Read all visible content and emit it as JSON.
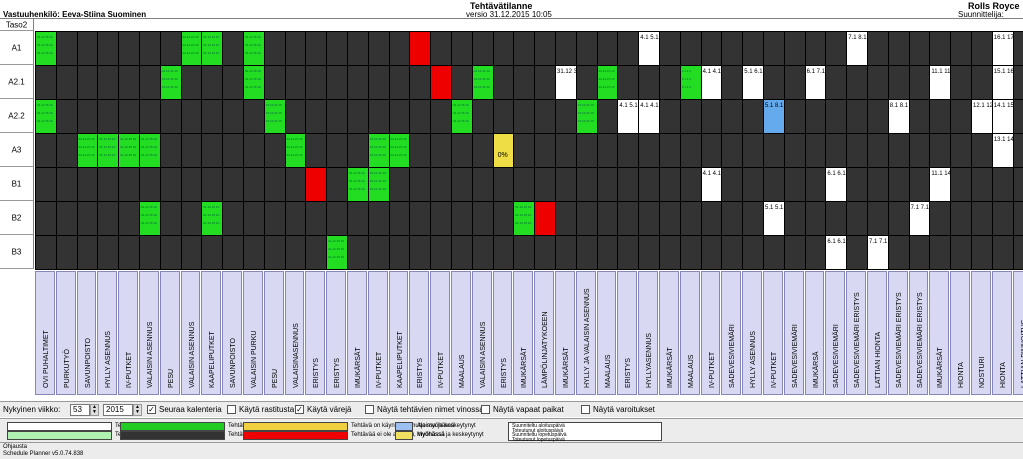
{
  "header": {
    "responsible": "Vastuuhenkilö: Eeva-Stiina Suominen",
    "title": "Tehtävätilanne",
    "version": "versio 31.12.2015 10:05",
    "company": "Rolls Royce",
    "planner": "Suunnittelija:",
    "corner": "Taso2"
  },
  "rows": [
    "A1",
    "A2.1",
    "A2.2",
    "A3",
    "B1",
    "B2",
    "B3"
  ],
  "columns": [
    "OVI PUHALTIMET",
    "PURKUTYÖ",
    "SAVUNPOISTO",
    "HYLLY ASENNUS",
    "IV-PUTKET",
    "VALAISIN ASENNUS",
    "PESU",
    "VALAISIN ASENNUS",
    "KAAPELIPUTKET",
    "SAVUNPOISTO",
    "VALAISIN PURKU",
    "PESU",
    "VALAISINASENNUS",
    "ERISTYS",
    "ERISTYS",
    "IMUKÄRSÄT",
    "IV-PUTKET",
    "KAAPELIPUTKET",
    "ERISTYS",
    "IV-PUTKET",
    "MAALAUS",
    "VALAISIN ASENNUS",
    "ERISTYS",
    "IMUKÄRSÄT",
    "LÄMPÖLINJATYKOEEN",
    "IMUKÄRSÄT",
    "HYLLY JA VALAISIN ASENNUS",
    "MAALAUS",
    "ERISTYS",
    "HYLLYASENNUS",
    "IMUKÄRSÄT",
    "MAALAUS",
    "IV-PUTKET",
    "SADEVESIVIEMÄRI",
    "HYLLY ASENNUS",
    "IV-PUTKET",
    "SADEVESIVIEMÄRI",
    "IMUKÄRSÄ",
    "SADEVESIVIEMÄRI",
    "SADEVESIVIEMÄRI ERISTYS",
    "LATTIAN HIONTA",
    "SADEVESIVIEMÄRI ERISTYS",
    "SADEVESIVIEMÄRI ERISTYS",
    "IMUKÄRSÄT",
    "HIONTA",
    "NOSTURI",
    "HIONTA",
    "LATTIAN PINNOITUS"
  ],
  "cells": [
    {
      "r": 0,
      "c": 0,
      "s": "green",
      "t": "01.12.15 10"
    },
    {
      "r": 0,
      "c": 7,
      "s": "green",
      "t": "01.12.15 10"
    },
    {
      "r": 0,
      "c": 8,
      "s": "green",
      "t": "01.12.15 10"
    },
    {
      "r": 0,
      "c": 10,
      "s": "green",
      "t": "01.12.15 10"
    },
    {
      "r": 0,
      "c": 18,
      "s": "red",
      "t": ""
    },
    {
      "r": 0,
      "c": 29,
      "s": "white",
      "t": "4.1 5.1"
    },
    {
      "r": 0,
      "c": 39,
      "s": "white",
      "t": "7.1 8.1"
    },
    {
      "r": 0,
      "c": 46,
      "s": "white",
      "t": "16.1 17.1"
    },
    {
      "r": 1,
      "c": 6,
      "s": "green",
      "t": "01.12.15 10"
    },
    {
      "r": 1,
      "c": 10,
      "s": "green",
      "t": "01.12.15 10"
    },
    {
      "r": 1,
      "c": 19,
      "s": "red",
      "t": ""
    },
    {
      "r": 1,
      "c": 21,
      "s": "green",
      "t": "01.12.15 10"
    },
    {
      "r": 1,
      "c": 25,
      "s": "white",
      "t": "31.12 31.12"
    },
    {
      "r": 1,
      "c": 27,
      "s": "green",
      "t": "01.12.15 10"
    },
    {
      "r": 1,
      "c": 31,
      "s": "green",
      "t": "4.1 4.1"
    },
    {
      "r": 1,
      "c": 32,
      "s": "white",
      "t": "4.1 4.1"
    },
    {
      "r": 1,
      "c": 34,
      "s": "white",
      "t": "5.1 6.1"
    },
    {
      "r": 1,
      "c": 37,
      "s": "white",
      "t": "6.1 7.1"
    },
    {
      "r": 1,
      "c": 43,
      "s": "white",
      "t": "11.1 11.1"
    },
    {
      "r": 1,
      "c": 46,
      "s": "white",
      "t": "15.1 16.1"
    },
    {
      "r": 2,
      "c": 0,
      "s": "green",
      "t": "01.12.15 10"
    },
    {
      "r": 2,
      "c": 11,
      "s": "green",
      "t": "01.12.15 10"
    },
    {
      "r": 2,
      "c": 20,
      "s": "green",
      "t": "01.12.15 10"
    },
    {
      "r": 2,
      "c": 26,
      "s": "green",
      "t": "01.12.15 10"
    },
    {
      "r": 2,
      "c": 28,
      "s": "white",
      "t": "4.1 5.1"
    },
    {
      "r": 2,
      "c": 29,
      "s": "white",
      "t": "4.1 4.1"
    },
    {
      "r": 2,
      "c": 35,
      "s": "blue",
      "t": "5.1 8.1"
    },
    {
      "r": 2,
      "c": 41,
      "s": "white",
      "t": "8.1 8.1"
    },
    {
      "r": 2,
      "c": 45,
      "s": "white",
      "t": "12.1 12.1"
    },
    {
      "r": 2,
      "c": 46,
      "s": "white",
      "t": "14.1 15.1"
    },
    {
      "r": 3,
      "c": 2,
      "s": "green",
      "t": "01.12.15 10"
    },
    {
      "r": 3,
      "c": 3,
      "s": "green",
      "t": "01.12.15 10"
    },
    {
      "r": 3,
      "c": 4,
      "s": "green",
      "t": "01.12.15 10"
    },
    {
      "r": 3,
      "c": 5,
      "s": "green",
      "t": "01.12.15 10"
    },
    {
      "r": 3,
      "c": 12,
      "s": "green",
      "t": "01.12.15 10"
    },
    {
      "r": 3,
      "c": 16,
      "s": "green",
      "t": "01.12.15 10"
    },
    {
      "r": 3,
      "c": 17,
      "s": "green",
      "t": "01.12.15 10"
    },
    {
      "r": 3,
      "c": 22,
      "s": "yellow",
      "t": "0%"
    },
    {
      "r": 3,
      "c": 46,
      "s": "white",
      "t": "13.1 14.1"
    },
    {
      "r": 4,
      "c": 13,
      "s": "red",
      "t": ""
    },
    {
      "r": 4,
      "c": 15,
      "s": "green",
      "t": "01.12.15 10"
    },
    {
      "r": 4,
      "c": 16,
      "s": "green",
      "t": "01.12.15 10"
    },
    {
      "r": 4,
      "c": 32,
      "s": "white",
      "t": "4.1 4.1"
    },
    {
      "r": 4,
      "c": 38,
      "s": "white",
      "t": "6.1 6.1"
    },
    {
      "r": 4,
      "c": 43,
      "s": "white",
      "t": "11.1 14.1"
    },
    {
      "r": 5,
      "c": 5,
      "s": "green",
      "t": "01.12.15 10"
    },
    {
      "r": 5,
      "c": 8,
      "s": "green",
      "t": "01.12.15 10"
    },
    {
      "r": 5,
      "c": 23,
      "s": "green",
      "t": "01.12.15 10"
    },
    {
      "r": 5,
      "c": 24,
      "s": "red",
      "t": ""
    },
    {
      "r": 5,
      "c": 35,
      "s": "white",
      "t": "5.1 5.1"
    },
    {
      "r": 5,
      "c": 42,
      "s": "white",
      "t": "7.1 7.1"
    },
    {
      "r": 6,
      "c": 14,
      "s": "green",
      "t": "01.12.15 10"
    },
    {
      "r": 6,
      "c": 38,
      "s": "white",
      "t": "6.1 6.1"
    },
    {
      "r": 6,
      "c": 40,
      "s": "white",
      "t": "7.1 7.1"
    }
  ],
  "controls": {
    "week_label": "Nykyinen viikko:",
    "week": "53",
    "year": "2015",
    "follow_calendar": "Seuraa kalenteria",
    "use_ticks": "Käytä rastitusta",
    "use_colors": "Käytä värejä",
    "diagonal_names": "Näytä tehtävien nimet vinossa",
    "free_places": "Näytä vapaat paikat",
    "warnings": "Näytä varoitukset"
  },
  "legend": [
    {
      "label": "Tehtävää ei ole aloitettu",
      "color": "#ffffff"
    },
    {
      "label": "Tehtävä on käynnissä",
      "color": "#b0f0b0"
    },
    {
      "label": "Tehtävä on valmis",
      "color": "#22cc22"
    },
    {
      "label": "Tehtävää ei ole ko. paikassa",
      "color": "#333333"
    },
    {
      "label": "Tehtävä on käynnissä mutta myöhässä",
      "color": "#f0d040"
    },
    {
      "label": "Tehtävää ei ole aloitettu, myöhässä",
      "color": "#ee0000"
    },
    {
      "label": "Ajoissa ja keskeytynyt",
      "color": "#9cc0f0"
    },
    {
      "label": "Myöhässä ja keskeytynyt",
      "color": "#f0e060"
    }
  ],
  "legend_box": [
    "Suunniteltu aloituspäivä",
    "Toteutunut aloituspäivä",
    "Suunniteltu lopetuspäivä",
    "Toteutunut lopetuspäivä"
  ],
  "footer": {
    "notes": "Ohjausta",
    "version": "Schedule Planner v5.0.74.838"
  },
  "colors": {
    "green": "#22dd22",
    "red": "#ee0000",
    "white": "#ffffff",
    "yellow": "#eedd44",
    "blue": "#66aaee",
    "empty": "#333333"
  }
}
